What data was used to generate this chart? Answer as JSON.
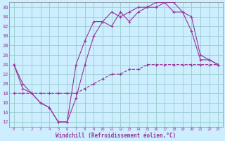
{
  "xlabel": "Windchill (Refroidissement éolien,°C)",
  "background_color": "#cceeff",
  "line_color": "#993399",
  "grid_color": "#99cccc",
  "xlim": [
    -0.5,
    23.5
  ],
  "ylim": [
    11,
    37
  ],
  "xticks": [
    0,
    1,
    2,
    3,
    4,
    5,
    6,
    7,
    8,
    9,
    10,
    11,
    12,
    13,
    14,
    15,
    16,
    17,
    18,
    19,
    20,
    21,
    22,
    23
  ],
  "yticks": [
    12,
    14,
    16,
    18,
    20,
    22,
    24,
    26,
    28,
    30,
    32,
    34,
    36
  ],
  "series1_x": [
    0,
    1,
    2,
    3,
    4,
    5,
    6,
    7,
    8,
    9,
    10,
    11,
    12,
    13,
    14,
    15,
    16,
    17,
    18,
    19,
    20,
    21,
    22,
    23
  ],
  "series1_y": [
    24,
    20,
    18,
    16,
    15,
    12,
    12,
    17,
    24,
    30,
    33,
    32,
    35,
    33,
    35,
    36,
    36,
    37,
    37,
    35,
    31,
    25,
    25,
    24
  ],
  "series2_x": [
    0,
    1,
    2,
    3,
    4,
    5,
    6,
    7,
    8,
    9,
    10,
    11,
    12,
    13,
    14,
    15,
    16,
    17,
    18,
    19,
    20,
    21,
    22,
    23
  ],
  "series2_y": [
    18,
    18,
    18,
    18,
    18,
    18,
    18,
    18,
    19,
    20,
    21,
    22,
    22,
    23,
    23,
    24,
    24,
    24,
    24,
    24,
    24,
    24,
    24,
    24
  ],
  "series3_x": [
    0,
    1,
    2,
    3,
    4,
    5,
    6,
    7,
    8,
    9,
    10,
    11,
    12,
    13,
    14,
    15,
    16,
    17,
    18,
    19,
    20,
    21,
    22,
    23
  ],
  "series3_y": [
    24,
    19,
    18,
    16,
    15,
    12,
    12,
    24,
    29,
    33,
    33,
    35,
    34,
    35,
    36,
    36,
    37,
    37,
    35,
    35,
    34,
    26,
    25,
    24
  ]
}
